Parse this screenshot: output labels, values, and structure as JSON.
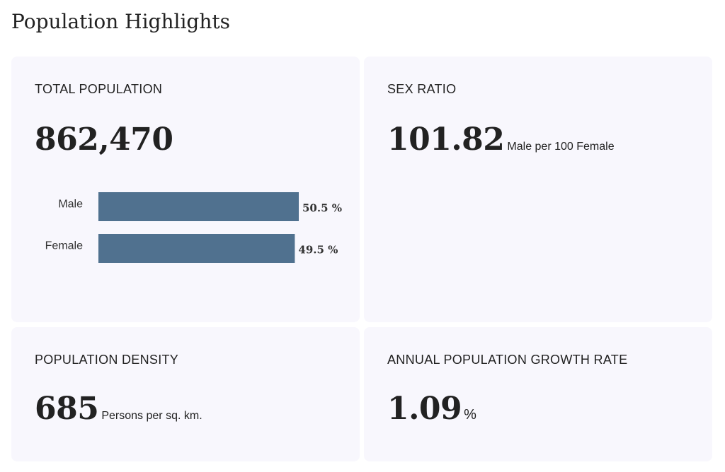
{
  "page": {
    "title": "Population Highlights"
  },
  "total_population": {
    "label": "TOTAL POPULATION",
    "value": "862,470"
  },
  "sex_ratio": {
    "label": "SEX RATIO",
    "value": "101.82",
    "unit": "Male per 100 Female"
  },
  "population_density": {
    "label": "POPULATION DENSITY",
    "value": "685",
    "unit": "Persons per sq. km."
  },
  "growth_rate": {
    "label": "ANNUAL POPULATION GROWTH RATE",
    "value": "1.09",
    "unit": "%"
  },
  "chart_data": {
    "type": "bar",
    "orientation": "horizontal",
    "categories": [
      "Male",
      "Female"
    ],
    "values": [
      50.5,
      49.5
    ],
    "data_labels": [
      "50.5 %",
      "49.5 %"
    ],
    "xlim": [
      0,
      50.5
    ],
    "bar_color": "#50718f"
  },
  "colors": {
    "card_background": "#f8f7fd",
    "text": "#222222",
    "bar": "#50718f"
  }
}
